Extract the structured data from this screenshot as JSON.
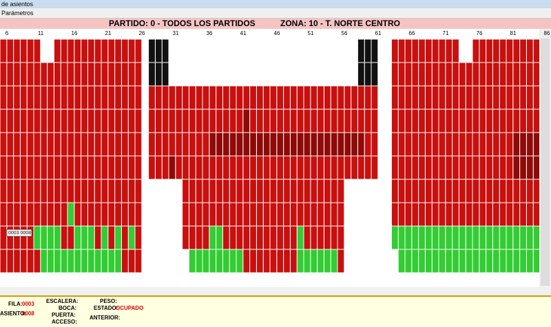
{
  "window": {
    "title": "de asientos",
    "menu": "Parámetros"
  },
  "header": {
    "partido": "PARTIDO: 0 - TODOS LOS PARTIDOS",
    "zona": "ZONA: 10 - T. NORTE CENTRO"
  },
  "columns": [
    "6",
    "11",
    "16",
    "21",
    "26",
    "31",
    "36",
    "41",
    "46",
    "51",
    "56",
    "61",
    "66",
    "71",
    "76",
    "81",
    "86"
  ],
  "seat_label": "0003.0008",
  "footer": {
    "fila_label": "FILA:",
    "fila": "0003",
    "asiento_label": "ASIENTO:",
    "asiento": "0008",
    "escalera": "ESCALERA:",
    "boca": "BOCA:",
    "puerta": "PUERTA:",
    "acceso": "ACCESO:",
    "peso": "PESO:",
    "estado_label": "ESTADO:",
    "estado": "OCUPADO",
    "anterior": "ANTERIOR:"
  }
}
